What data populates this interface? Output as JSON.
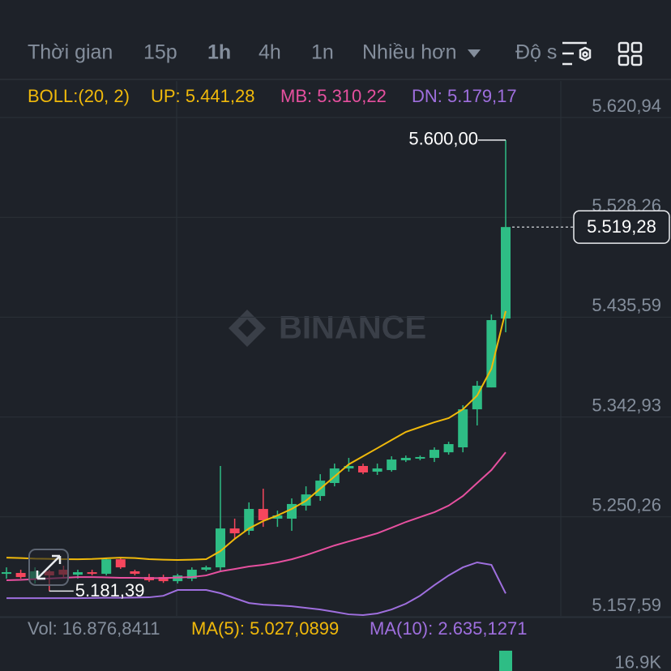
{
  "toolbar": {
    "items": [
      "Thời gian",
      "15p",
      "1h",
      "4h",
      "1n",
      "Nhiều hơn",
      "Độ s"
    ],
    "selected": "1h"
  },
  "chart_data": {
    "type": "candlestick",
    "indicator": "BOLL:(20, 2)",
    "watermark": "BINANCE",
    "up_color": "#2ebd85",
    "down_color": "#f6465d",
    "ylim": [
      5157.59,
      5654.8
    ],
    "yticks": [
      {
        "value": 5157.59,
        "label": "5.157,59"
      },
      {
        "value": 5250.26,
        "label": "5.250,26"
      },
      {
        "value": 5342.93,
        "label": "5.342,93"
      },
      {
        "value": 5435.59,
        "label": "5.435,59"
      },
      {
        "value": 5528.26,
        "label": "5.528,26"
      },
      {
        "value": 5620.94,
        "label": "5.620,94"
      }
    ],
    "grid": true,
    "open": [
      5197.4,
      5198.2,
      5192.2,
      5199.7,
      5201.2,
      5196.6,
      5198.9,
      5197.4,
      5210.9,
      5199.7,
      5194.4,
      5194.4,
      5190.6,
      5192.9,
      5201.2,
      5203.4,
      5239.5,
      5237.3,
      5257.6,
      5248.6,
      5248.6,
      5260.7,
      5269.6,
      5281.7,
      5295.2,
      5297.5,
      5292.2,
      5293.7,
      5302.8,
      5304.3,
      5305.0,
      5310.2,
      5314.8,
      5350.1,
      5370.4,
      5434.4
    ],
    "high": [
      5203.4,
      5201.2,
      5203.4,
      5201.2,
      5205.0,
      5201.2,
      5201.2,
      5212.0,
      5212.0,
      5201.2,
      5197.4,
      5196.6,
      5197.4,
      5203.4,
      5205.0,
      5297.5,
      5248.6,
      5263.7,
      5276.4,
      5256.1,
      5267.4,
      5278.6,
      5289.9,
      5299.7,
      5305.0,
      5299.7,
      5299.7,
      5306.5,
      5307.2,
      5307.2,
      5314.8,
      5320.0,
      5353.9,
      5376.4,
      5438.1,
      5600.0
    ],
    "low": [
      5192.9,
      5192.9,
      5188.4,
      5181.39,
      5194.4,
      5192.9,
      5195.9,
      5195.9,
      5202.0,
      5195.9,
      5190.0,
      5189.0,
      5188.4,
      5190.6,
      5199.7,
      5199.7,
      5229.8,
      5233.5,
      5241.0,
      5241.0,
      5237.3,
      5256.1,
      5265.2,
      5278.6,
      5292.2,
      5289.9,
      5289.2,
      5292.2,
      5301.2,
      5302.8,
      5301.2,
      5308.0,
      5310.2,
      5335.1,
      5370.4,
      5421.6
    ],
    "close": [
      5198.9,
      5194.4,
      5199.7,
      5195.9,
      5196.6,
      5198.9,
      5197.4,
      5210.9,
      5203.4,
      5197.4,
      5191.4,
      5190.6,
      5195.9,
      5201.2,
      5203.4,
      5239.5,
      5235.0,
      5257.6,
      5247.1,
      5251.6,
      5262.2,
      5271.1,
      5283.9,
      5295.2,
      5297.5,
      5291.5,
      5295.2,
      5303.5,
      5305.0,
      5305.8,
      5312.5,
      5317.8,
      5350.1,
      5372.0,
      5432.9,
      5519.28
    ],
    "series": [
      {
        "name": "UP: 5.441,28",
        "color": "#f0b90b",
        "values": [
          5212.4,
          5212.0,
          5211.5,
          5211.3,
          5211.0,
          5210.9,
          5211.2,
          5211.8,
          5212.4,
          5212.0,
          5211.0,
          5210.5,
          5210.2,
          5210.5,
          5211.0,
          5218.5,
          5229.8,
          5239.5,
          5246.4,
          5251.6,
          5257.6,
          5265.2,
          5276.4,
          5287.7,
          5299.0,
          5306.5,
          5314.0,
          5321.6,
          5329.1,
          5333.6,
          5338.1,
          5341.9,
          5350.1,
          5362.9,
          5387.8,
          5441.28
        ]
      },
      {
        "name": "MB: 5.310,22",
        "color": "#e6509f",
        "values": [
          5191.4,
          5191.8,
          5192.5,
          5193.0,
          5193.7,
          5194.4,
          5194.4,
          5194.1,
          5193.7,
          5193.7,
          5193.4,
          5193.4,
          5194.0,
          5194.4,
          5195.9,
          5199.7,
          5201.9,
          5204.2,
          5205.7,
          5208.0,
          5210.9,
          5214.7,
          5219.2,
          5223.7,
          5227.5,
          5231.2,
          5235.0,
          5240.2,
          5245.5,
          5250.1,
          5254.6,
          5260.7,
          5269.6,
          5281.7,
          5293.7,
          5310.22
        ]
      },
      {
        "name": "DN: 5.179,17",
        "color": "#9f6fde",
        "values": [
          5174.8,
          5174.8,
          5174.8,
          5174.8,
          5174.8,
          5174.8,
          5175.0,
          5175.2,
          5175.2,
          5175.4,
          5175.6,
          5177.0,
          5182.4,
          5182.4,
          5182.4,
          5179.4,
          5174.8,
          5170.3,
          5168.8,
          5168.1,
          5167.3,
          5165.8,
          5164.3,
          5162.1,
          5159.8,
          5159.1,
          5160.6,
          5164.3,
          5169.6,
          5177.1,
          5186.9,
          5195.9,
          5203.4,
          5208.0,
          5205.7,
          5179.17
        ]
      }
    ],
    "annotations": [
      {
        "value": 5600.0,
        "label": "5.600,00"
      },
      {
        "value": 5181.39,
        "label": "5.181,39"
      }
    ],
    "last_price": {
      "value": 5519.28,
      "label": "5.519,28"
    },
    "volume": {
      "label": "Vol: 16.876,8411",
      "value": 16876.8411,
      "ma5": "MA(5): 5.027,0899",
      "ma10": "MA(10): 2.635,1271",
      "yticks": [
        {
          "value": 16900,
          "label": "16.9K"
        }
      ]
    }
  }
}
